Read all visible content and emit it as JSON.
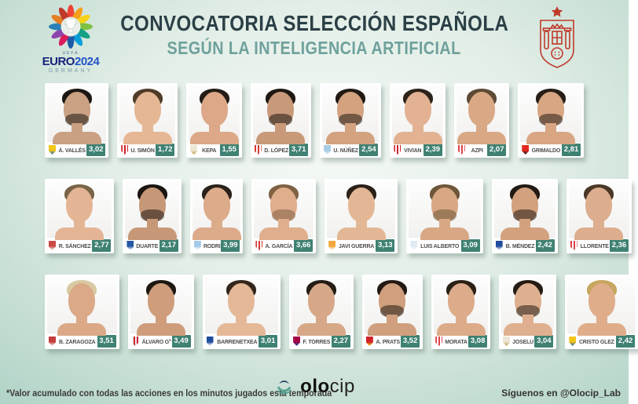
{
  "header": {
    "title": "CONVOCATORIA SELECCIÓN ESPAÑOLA",
    "subtitle": "SEGÚN LA INTELIGENCIA ARTIFICIAL",
    "euro_logo": {
      "uefa": "UEFA",
      "word": "EURO",
      "year": "2024",
      "country": "GERMANY"
    }
  },
  "colors": {
    "title": "#2b3f46",
    "subtitle": "#6fa19c",
    "value_box": "#3f8173",
    "crest_red": "#c0392b",
    "euro_blue": "#16247c"
  },
  "rows": [
    {
      "players": [
        {
          "name": "Á. VALLÉS",
          "value": "3,02",
          "badge": {
            "c1": "#f2c618",
            "c2": "#2463ae",
            "striped": false
          },
          "hair": "#1c1713",
          "skin": "#caa183",
          "beard": true
        },
        {
          "name": "U. SIMÓN",
          "value": "1,72",
          "badge": {
            "c1": "#d0222a",
            "c2": "#ffffff",
            "striped": true
          },
          "hair": "#4f3b28",
          "skin": "#e6b795",
          "beard": false
        },
        {
          "name": "KEPA",
          "value": "1,55",
          "badge": {
            "c1": "#ece6d4",
            "c2": "#b79b3e",
            "striped": false
          },
          "hair": "#241d17",
          "skin": "#dca887",
          "beard": false
        },
        {
          "name": "D. LÓPEZ",
          "value": "3,71",
          "badge": {
            "c1": "#d63a31",
            "c2": "#ffffff",
            "striped": true
          },
          "hair": "#1e1813",
          "skin": "#c89a79",
          "beard": true
        },
        {
          "name": "U. NÚÑEZ",
          "value": "2,54",
          "badge": {
            "c1": "#a6cbe3",
            "c2": "#e8eef3",
            "striped": false
          },
          "hair": "#211a14",
          "skin": "#d3a27f",
          "beard": true
        },
        {
          "name": "VIVIAN",
          "value": "2,39",
          "badge": {
            "c1": "#d0222a",
            "c2": "#ffffff",
            "striped": true
          },
          "hair": "#2c2219",
          "skin": "#e2b292",
          "beard": false
        },
        {
          "name": "AZPI",
          "value": "2,07",
          "badge": {
            "c1": "#e04049",
            "c2": "#ffffff",
            "striped": true
          },
          "hair": "#5d4a36",
          "skin": "#d9a884",
          "beard": false
        },
        {
          "name": "GRIMALDO",
          "value": "2,81",
          "badge": {
            "c1": "#e3291f",
            "c2": "#1c1c1c",
            "striped": false
          },
          "hair": "#261e17",
          "skin": "#d8a683",
          "beard": true
        }
      ]
    },
    {
      "players": [
        {
          "name": "R. SÁNCHEZ",
          "value": "2,77",
          "badge": {
            "c1": "#c94a43",
            "c2": "#f4efe8",
            "striped": false
          },
          "hair": "#7a6448",
          "skin": "#e4b595",
          "beard": false
        },
        {
          "name": "DUARTE",
          "value": "2,17",
          "badge": {
            "c1": "#2457a5",
            "c2": "#ffffff",
            "striped": false
          },
          "hair": "#1b1511",
          "skin": "#c79878",
          "beard": true
        },
        {
          "name": "RODRI",
          "value": "3,99",
          "badge": {
            "c1": "#a3c9e8",
            "c2": "#ffffff",
            "striped": false
          },
          "hair": "#2a211a",
          "skin": "#dcab8a",
          "beard": false
        },
        {
          "name": "A. GARCÍA",
          "value": "3,66",
          "badge": {
            "c1": "#d63a31",
            "c2": "#ffffff",
            "striped": true
          },
          "hair": "#7f6144",
          "skin": "#dfae8c",
          "beard": true
        },
        {
          "name": "JAVI GUERRA",
          "value": "3,13",
          "badge": {
            "c1": "#f0a73c",
            "c2": "#ffffff",
            "striped": false
          },
          "hair": "#2b2118",
          "skin": "#e3b795",
          "beard": false
        },
        {
          "name": "LUIS ALBERTO",
          "value": "3,09",
          "badge": {
            "c1": "#dfeaf2",
            "c2": "#f7fafc",
            "striped": false
          },
          "hair": "#6e5639",
          "skin": "#d8a884",
          "beard": true
        },
        {
          "name": "B. MÉNDEZ",
          "value": "2,42",
          "badge": {
            "c1": "#1f4c9c",
            "c2": "#ffffff",
            "striped": false
          },
          "hair": "#221a13",
          "skin": "#d3a17e",
          "beard": true
        },
        {
          "name": "LLORENTE",
          "value": "2,36",
          "badge": {
            "c1": "#e04049",
            "c2": "#ffffff",
            "striped": true
          },
          "hair": "#4a3726",
          "skin": "#dcae8e",
          "beard": false
        }
      ]
    },
    {
      "players": [
        {
          "name": "B. ZARAGOZA",
          "value": "3,51",
          "badge": {
            "c1": "#c43c3c",
            "c2": "#f3eee6",
            "striped": false
          },
          "hair": "#d9c9a2",
          "skin": "#dba987",
          "beard": false
        },
        {
          "name": "ÁLVARO Gª",
          "value": "3,49",
          "badge": {
            "c1": "#eeeeee",
            "c2": "#d0222a",
            "striped": true
          },
          "hair": "#1d1712",
          "skin": "#cf9d7b",
          "beard": false
        },
        {
          "name": "BARRENETXEA",
          "value": "3,01",
          "badge": {
            "c1": "#1f4c9c",
            "c2": "#ffffff",
            "striped": false
          },
          "hair": "#33261a",
          "skin": "#e5b897",
          "beard": false
        },
        {
          "name": "F. TORRES",
          "value": "2,27",
          "badge": {
            "c1": "#a50044",
            "c2": "#1d4f9c",
            "striped": false
          },
          "hair": "#241c15",
          "skin": "#d7a888",
          "beard": false
        },
        {
          "name": "A. PRATS",
          "value": "3,52",
          "badge": {
            "c1": "#d0222a",
            "c2": "#f2c618",
            "striped": false
          },
          "hair": "#221a12",
          "skin": "#cf9f7e",
          "beard": true
        },
        {
          "name": "MORATA",
          "value": "3,08",
          "badge": {
            "c1": "#e04049",
            "c2": "#ffffff",
            "striped": true
          },
          "hair": "#2a2016",
          "skin": "#dcab89",
          "beard": false
        },
        {
          "name": "JOSELU",
          "value": "3,04",
          "badge": {
            "c1": "#ece6d4",
            "c2": "#b79b3e",
            "striped": false
          },
          "hair": "#241b13",
          "skin": "#dfb090",
          "beard": true
        },
        {
          "name": "CRISTO GLEZ",
          "value": "2,42",
          "badge": {
            "c1": "#f2c618",
            "c2": "#2463ae",
            "striped": false
          },
          "hair": "#c7a65f",
          "skin": "#e0ad8a",
          "beard": false
        }
      ]
    }
  ],
  "footer": {
    "note": "*Valor acumulado con todas las acciones en los minutos jugados esta temporada",
    "brand_bold": "olo",
    "brand_light": "cip",
    "social": "Síguenos en @Olocip_Lab"
  }
}
